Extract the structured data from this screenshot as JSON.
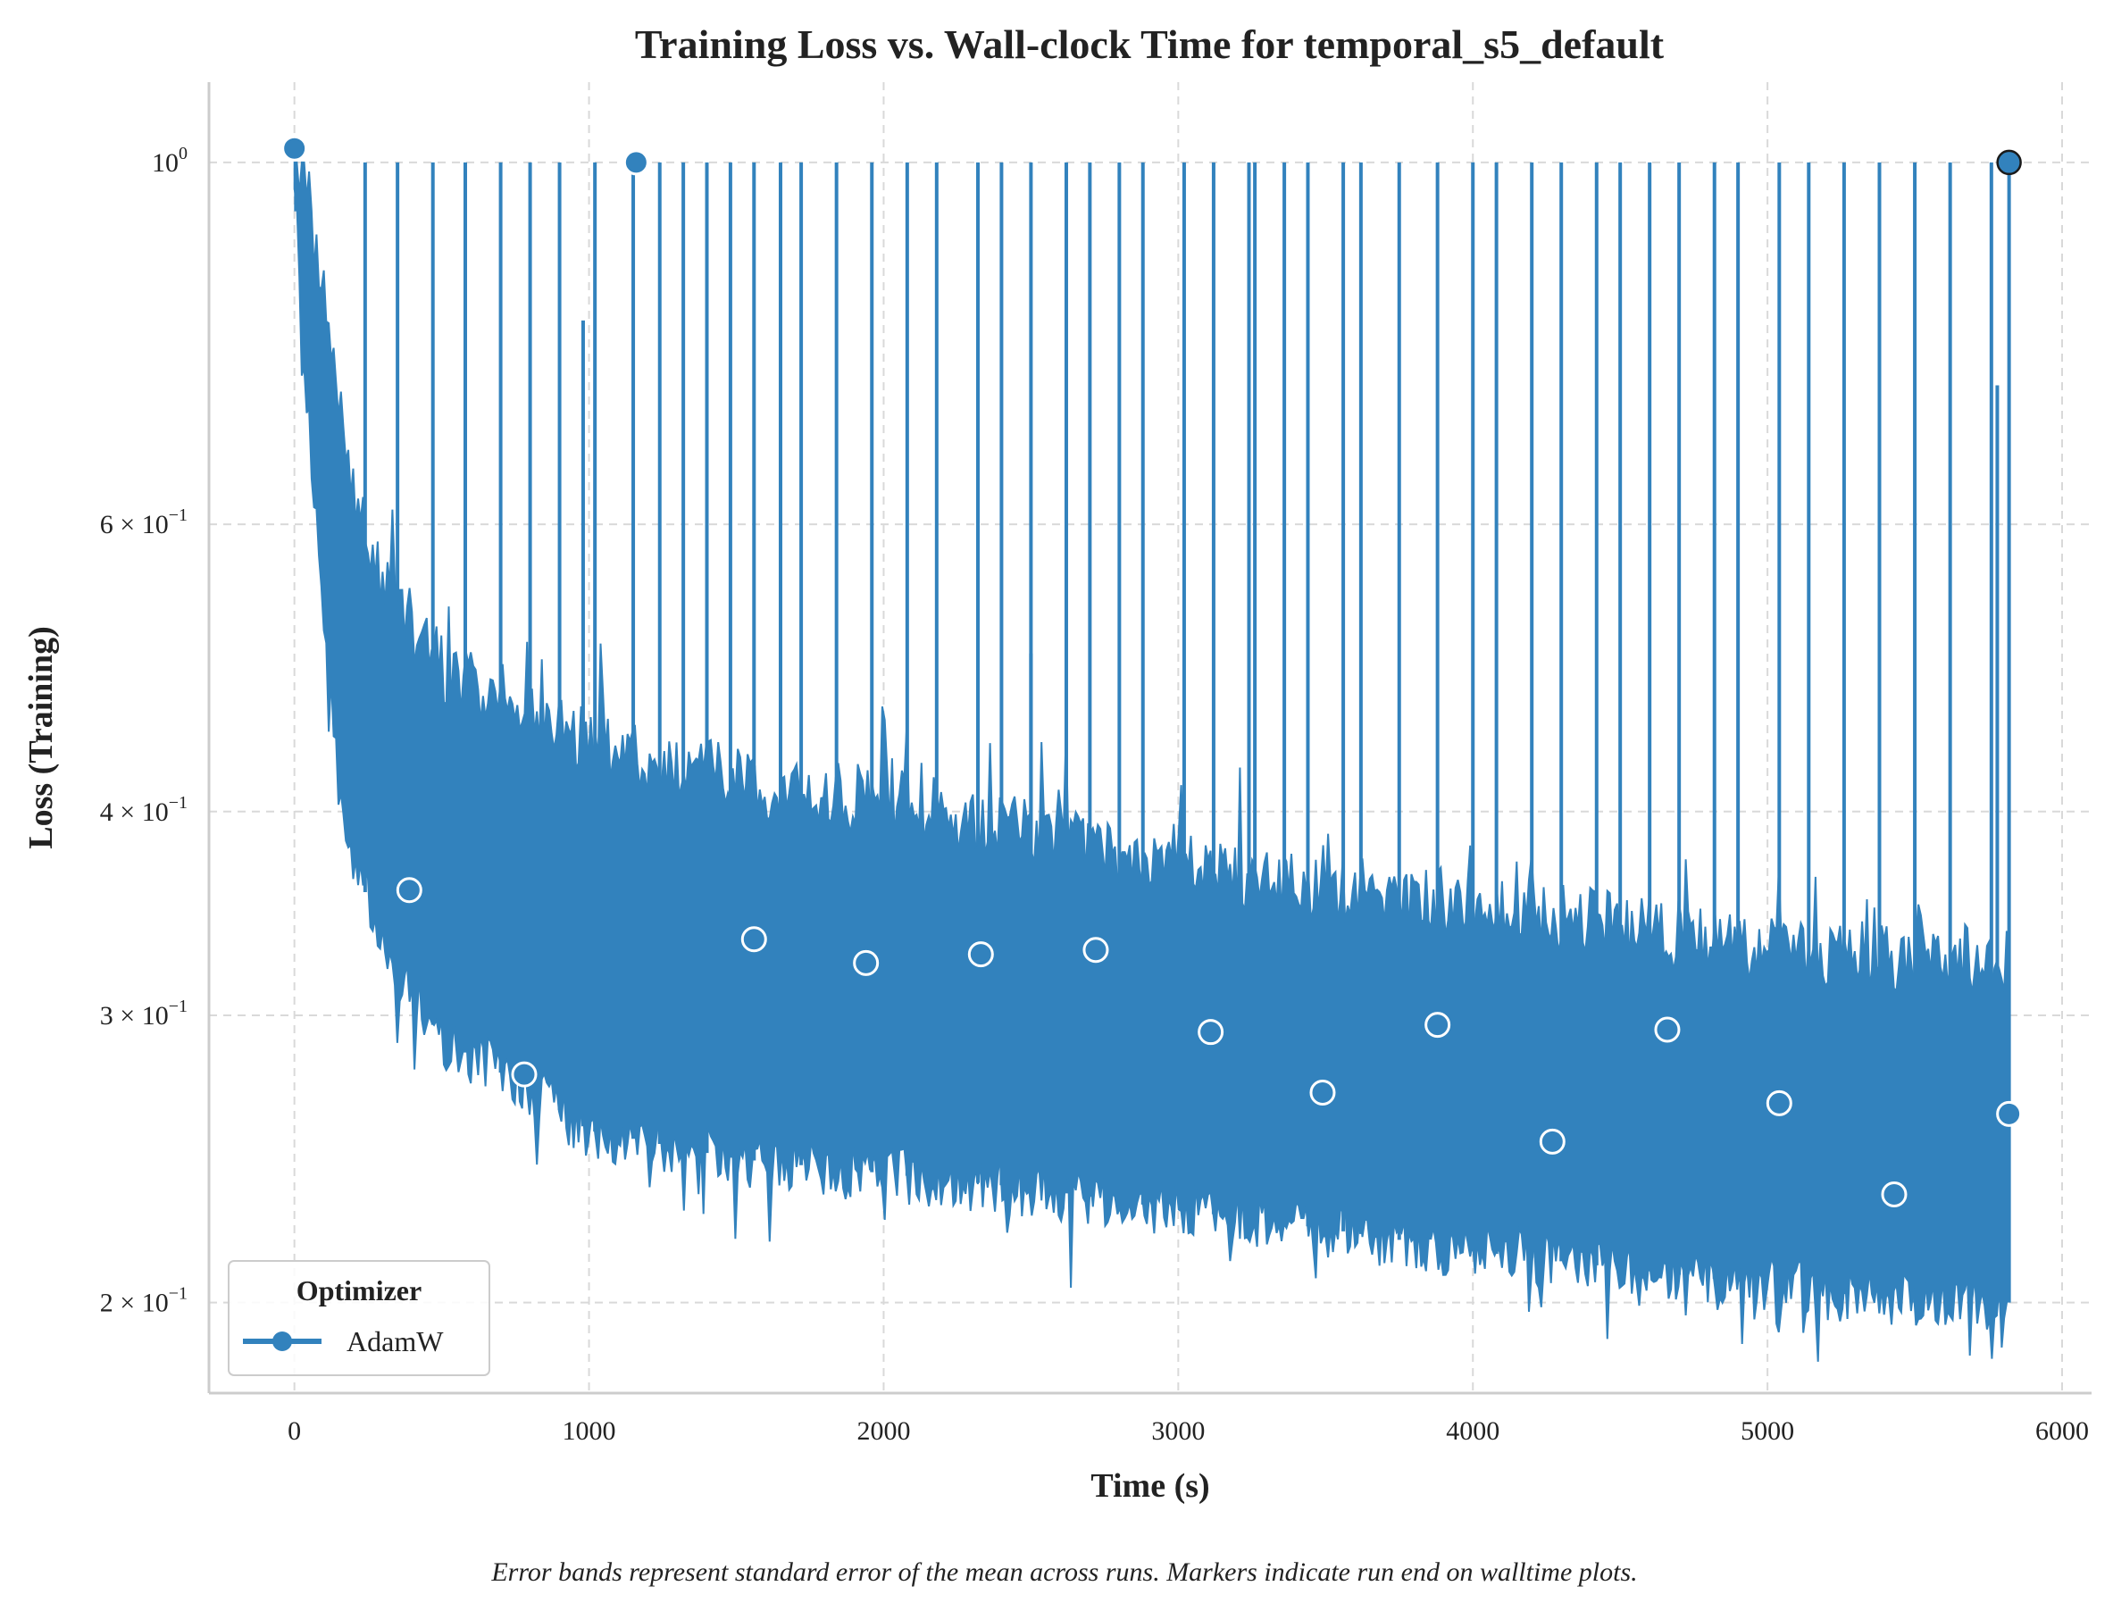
{
  "chart_data": {
    "type": "line",
    "title": "Training Loss vs. Wall-clock Time for temporal_s5_default",
    "xlabel": "Time (s)",
    "ylabel": "Loss (Training)",
    "xlim": [
      -290,
      6100
    ],
    "ylim": [
      0.176,
      1.12
    ],
    "y_scale": "log",
    "grid": true,
    "legend": {
      "title": "Optimizer",
      "placement": "lower-left",
      "entries": [
        "AdamW"
      ]
    },
    "caption": "Error bands represent standard error of the mean across runs. Markers indicate run end on walltime plots.",
    "x_ticks": [
      {
        "value": 0,
        "label": "0"
      },
      {
        "value": 1000,
        "label": "1000"
      },
      {
        "value": 2000,
        "label": "2000"
      },
      {
        "value": 3000,
        "label": "3000"
      },
      {
        "value": 4000,
        "label": "4000"
      },
      {
        "value": 5000,
        "label": "5000"
      },
      {
        "value": 6000,
        "label": "6000"
      }
    ],
    "y_ticks": [
      {
        "value": 1.0,
        "base": "10",
        "exp": "0"
      },
      {
        "value": 0.6,
        "base": "6 × 10",
        "exp": "−1"
      },
      {
        "value": 0.4,
        "base": "4 × 10",
        "exp": "−1"
      },
      {
        "value": 0.3,
        "base": "3 × 10",
        "exp": "−1"
      },
      {
        "value": 0.2,
        "base": "2 × 10",
        "exp": "−1"
      }
    ],
    "series": [
      {
        "name": "AdamW",
        "color": "#3282bd",
        "envelope": [
          {
            "x": 0,
            "low": 0.96,
            "high": 1.02
          },
          {
            "x": 30,
            "low": 0.8,
            "high": 0.98
          },
          {
            "x": 60,
            "low": 0.64,
            "high": 0.9
          },
          {
            "x": 100,
            "low": 0.52,
            "high": 0.84
          },
          {
            "x": 150,
            "low": 0.42,
            "high": 0.72
          },
          {
            "x": 200,
            "low": 0.375,
            "high": 0.62
          },
          {
            "x": 300,
            "low": 0.33,
            "high": 0.55
          },
          {
            "x": 500,
            "low": 0.29,
            "high": 0.49
          },
          {
            "x": 800,
            "low": 0.27,
            "high": 0.46
          },
          {
            "x": 1000,
            "low": 0.255,
            "high": 0.44
          },
          {
            "x": 1500,
            "low": 0.245,
            "high": 0.42
          },
          {
            "x": 2000,
            "low": 0.24,
            "high": 0.405
          },
          {
            "x": 2500,
            "low": 0.235,
            "high": 0.39
          },
          {
            "x": 3000,
            "low": 0.228,
            "high": 0.37
          },
          {
            "x": 3500,
            "low": 0.222,
            "high": 0.36
          },
          {
            "x": 4000,
            "low": 0.215,
            "high": 0.35
          },
          {
            "x": 4500,
            "low": 0.21,
            "high": 0.34
          },
          {
            "x": 5000,
            "low": 0.205,
            "high": 0.33
          },
          {
            "x": 5500,
            "low": 0.2,
            "high": 0.325
          },
          {
            "x": 5820,
            "low": 0.2,
            "high": 0.325
          }
        ],
        "spikes_to_1": [
          5,
          240,
          350,
          470,
          580,
          700,
          800,
          900,
          1020,
          1150,
          1240,
          1320,
          1400,
          1480,
          1560,
          1650,
          1720,
          1840,
          1960,
          2080,
          2180,
          2320,
          2400,
          2500,
          2620,
          2700,
          2800,
          2880,
          3020,
          3120,
          3240,
          3260,
          3360,
          3440,
          3560,
          3620,
          3750,
          3880,
          4000,
          4080,
          4200,
          4300,
          4420,
          4500,
          4600,
          4700,
          4820,
          4900,
          5040,
          5140,
          5260,
          5380,
          5500,
          5620,
          5760,
          5820
        ],
        "spikes_partial": [
          {
            "x": 980,
            "y": 0.8
          },
          {
            "x": 2500,
            "y": 0.5
          },
          {
            "x": 5780,
            "y": 0.73
          }
        ],
        "markers": [
          {
            "x": 0,
            "y": 1.02
          },
          {
            "x": 1160,
            "y": 1.0
          },
          {
            "x": 5820,
            "y": 1.0
          },
          {
            "x": 390,
            "y": 0.358
          },
          {
            "x": 780,
            "y": 0.276
          },
          {
            "x": 1560,
            "y": 0.334
          },
          {
            "x": 1940,
            "y": 0.323
          },
          {
            "x": 2330,
            "y": 0.327
          },
          {
            "x": 2720,
            "y": 0.329
          },
          {
            "x": 3110,
            "y": 0.293
          },
          {
            "x": 3490,
            "y": 0.269
          },
          {
            "x": 3880,
            "y": 0.296
          },
          {
            "x": 4270,
            "y": 0.251
          },
          {
            "x": 4660,
            "y": 0.294
          },
          {
            "x": 5040,
            "y": 0.265
          },
          {
            "x": 5430,
            "y": 0.233
          },
          {
            "x": 5820,
            "y": 0.261
          }
        ]
      }
    ]
  }
}
